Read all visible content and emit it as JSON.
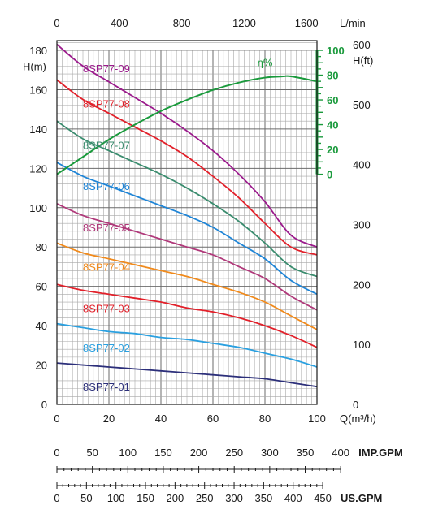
{
  "chart_data": {
    "type": "line",
    "grid": true,
    "x": {
      "label": "Q(m³/h)",
      "range": [
        0,
        100
      ],
      "ticks": [
        0,
        20,
        40,
        60,
        80,
        100
      ]
    },
    "x_top": {
      "label": "L/min",
      "ticks": [
        0,
        400,
        800,
        1200,
        1600
      ]
    },
    "y_left": {
      "label": "H(m)",
      "range": [
        0,
        180
      ],
      "ticks": [
        0,
        20,
        40,
        60,
        80,
        100,
        120,
        140,
        160,
        180
      ]
    },
    "y_right": {
      "label": "H(ft)",
      "ticks": [
        0,
        100,
        200,
        300,
        400,
        500,
        600
      ]
    },
    "efficiency_axis": {
      "label": "η%",
      "ticks": [
        0,
        20,
        40,
        60,
        80,
        100
      ]
    },
    "imp_gpm": {
      "label": "IMP.GPM",
      "ticks": [
        0,
        50,
        100,
        150,
        200,
        250,
        300,
        350,
        400
      ]
    },
    "us_gpm": {
      "label": "US.GPM",
      "ticks": [
        0,
        50,
        100,
        150,
        200,
        250,
        300,
        350,
        400,
        450
      ]
    },
    "series": [
      {
        "name": "8SP77-09",
        "color": "#9b1a8c",
        "x": [
          0,
          10,
          20,
          30,
          40,
          50,
          60,
          70,
          80,
          90,
          100
        ],
        "values": [
          183,
          172,
          164,
          156,
          148,
          139,
          129,
          117,
          103,
          86,
          80
        ]
      },
      {
        "name": "8SP77-08",
        "color": "#e2202a",
        "x": [
          0,
          10,
          20,
          30,
          40,
          50,
          60,
          70,
          80,
          90,
          100
        ],
        "values": [
          165,
          155,
          148,
          141,
          134,
          126,
          116,
          105,
          92,
          80,
          76
        ]
      },
      {
        "name": "8SP77-07",
        "color": "#3a8c6e",
        "x": [
          0,
          10,
          20,
          30,
          40,
          50,
          60,
          70,
          80,
          90,
          100
        ],
        "values": [
          144,
          135,
          129,
          123,
          117,
          110,
          102,
          93,
          82,
          70,
          65
        ]
      },
      {
        "name": "8SP77-06",
        "color": "#1e84d6",
        "x": [
          0,
          10,
          20,
          30,
          40,
          50,
          60,
          70,
          80,
          90,
          100
        ],
        "values": [
          123,
          116,
          111,
          106,
          101,
          96,
          90,
          82,
          74,
          63,
          56
        ]
      },
      {
        "name": "8SP77-05",
        "color": "#b0397a",
        "x": [
          0,
          10,
          20,
          30,
          40,
          50,
          60,
          70,
          80,
          90,
          100
        ],
        "values": [
          102,
          96,
          92,
          88,
          84,
          80,
          76,
          70,
          64,
          55,
          48
        ]
      },
      {
        "name": "8SP77-04",
        "color": "#f08a1c",
        "x": [
          0,
          10,
          20,
          30,
          40,
          50,
          60,
          70,
          80,
          90,
          100
        ],
        "values": [
          82,
          77,
          74,
          71,
          68,
          65,
          61,
          57,
          52,
          45,
          38
        ]
      },
      {
        "name": "8SP77-03",
        "color": "#e2202a",
        "x": [
          0,
          10,
          20,
          30,
          40,
          50,
          60,
          70,
          80,
          90,
          100
        ],
        "values": [
          61,
          58,
          56,
          54,
          52,
          49,
          47,
          44,
          40,
          35,
          29
        ]
      },
      {
        "name": "8SP77-02",
        "color": "#2aa0e0",
        "x": [
          0,
          10,
          20,
          30,
          40,
          50,
          60,
          70,
          80,
          90,
          100
        ],
        "values": [
          41,
          39,
          37,
          36,
          34,
          33,
          31,
          29,
          26,
          23,
          19
        ]
      },
      {
        "name": "8SP77-01",
        "color": "#2c2f7a",
        "x": [
          0,
          10,
          20,
          30,
          40,
          50,
          60,
          70,
          80,
          90,
          100
        ],
        "values": [
          21,
          20,
          19,
          18,
          17,
          16,
          15,
          14,
          13,
          11,
          9
        ]
      }
    ],
    "efficiency": {
      "name": "η%",
      "color": "#1a9a3c",
      "x": [
        0,
        10,
        20,
        30,
        40,
        50,
        60,
        70,
        80,
        87,
        90,
        100
      ],
      "values": [
        0,
        14,
        28,
        40,
        51,
        60,
        68,
        74,
        78,
        79,
        79,
        75
      ]
    }
  }
}
